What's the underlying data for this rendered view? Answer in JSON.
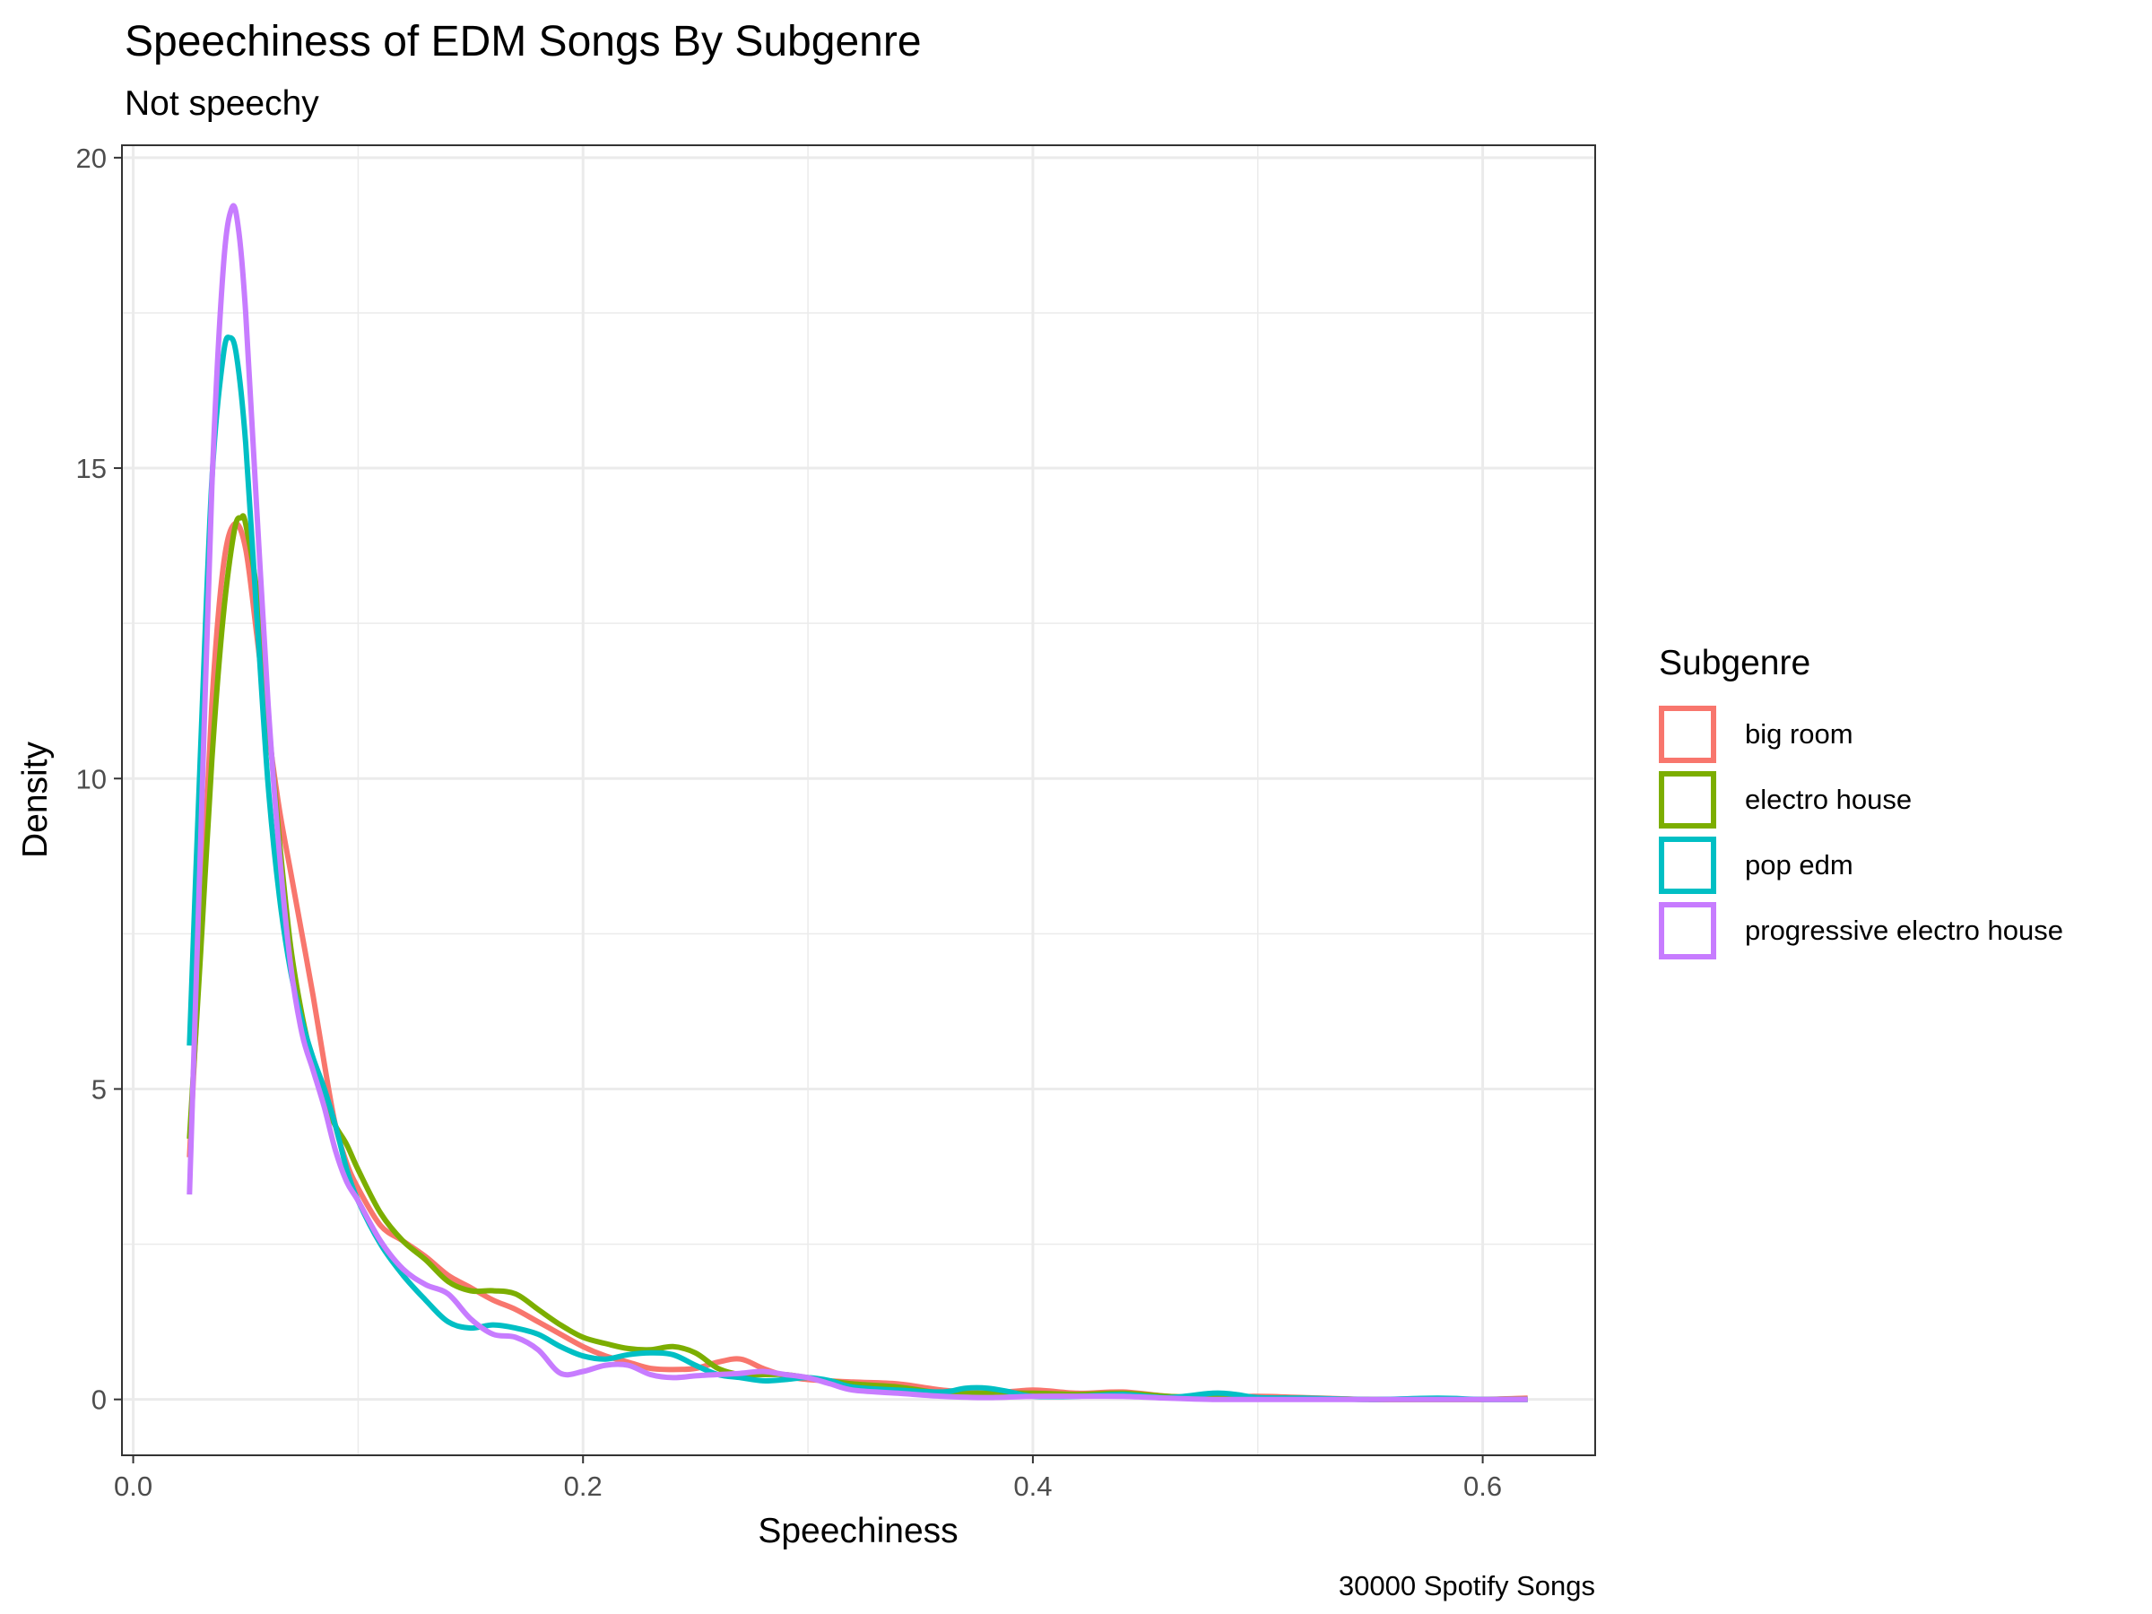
{
  "chart_data": {
    "type": "line",
    "title": "Speechiness of EDM Songs By Subgenre",
    "subtitle": "Not speechy",
    "xlabel": "Speechiness",
    "ylabel": "Density",
    "caption": "30000 Spotify Songs",
    "xlim": [
      -0.005,
      0.65
    ],
    "ylim": [
      -0.9,
      20.2
    ],
    "x_ticks": [
      0.0,
      0.2,
      0.4,
      0.6
    ],
    "x_tick_labels": [
      "0.0",
      "0.2",
      "0.4",
      "0.6"
    ],
    "x_minor_ticks": [
      0.1,
      0.3,
      0.5
    ],
    "y_ticks": [
      0,
      5,
      10,
      15,
      20
    ],
    "y_tick_labels": [
      "0",
      "5",
      "10",
      "15",
      "20"
    ],
    "y_minor_ticks": [
      2.5,
      7.5,
      12.5,
      17.5
    ],
    "grid": true,
    "legend": {
      "title": "Subgenre",
      "position": "right"
    },
    "series": [
      {
        "name": "big room",
        "color": "#F8766D",
        "points": [
          [
            0.025,
            3.9
          ],
          [
            0.03,
            7.5
          ],
          [
            0.035,
            11.2
          ],
          [
            0.04,
            13.4
          ],
          [
            0.045,
            14.1
          ],
          [
            0.05,
            13.7
          ],
          [
            0.055,
            12.3
          ],
          [
            0.06,
            10.8
          ],
          [
            0.065,
            9.5
          ],
          [
            0.07,
            8.5
          ],
          [
            0.075,
            7.5
          ],
          [
            0.08,
            6.5
          ],
          [
            0.085,
            5.4
          ],
          [
            0.09,
            4.4
          ],
          [
            0.095,
            3.8
          ],
          [
            0.1,
            3.4
          ],
          [
            0.11,
            2.8
          ],
          [
            0.12,
            2.55
          ],
          [
            0.13,
            2.3
          ],
          [
            0.14,
            2.0
          ],
          [
            0.15,
            1.8
          ],
          [
            0.16,
            1.6
          ],
          [
            0.17,
            1.45
          ],
          [
            0.18,
            1.25
          ],
          [
            0.19,
            1.05
          ],
          [
            0.2,
            0.85
          ],
          [
            0.21,
            0.7
          ],
          [
            0.22,
            0.6
          ],
          [
            0.23,
            0.5
          ],
          [
            0.24,
            0.48
          ],
          [
            0.25,
            0.5
          ],
          [
            0.26,
            0.6
          ],
          [
            0.27,
            0.65
          ],
          [
            0.28,
            0.5
          ],
          [
            0.29,
            0.38
          ],
          [
            0.3,
            0.32
          ],
          [
            0.32,
            0.28
          ],
          [
            0.34,
            0.25
          ],
          [
            0.36,
            0.15
          ],
          [
            0.38,
            0.1
          ],
          [
            0.4,
            0.15
          ],
          [
            0.42,
            0.1
          ],
          [
            0.44,
            0.12
          ],
          [
            0.46,
            0.05
          ],
          [
            0.48,
            0.03
          ],
          [
            0.5,
            0.05
          ],
          [
            0.52,
            0.03
          ],
          [
            0.55,
            0.0
          ],
          [
            0.58,
            0.0
          ],
          [
            0.6,
            0.0
          ],
          [
            0.62,
            0.02
          ]
        ]
      },
      {
        "name": "electro house",
        "color": "#7CAE00",
        "points": [
          [
            0.025,
            4.2
          ],
          [
            0.03,
            7.2
          ],
          [
            0.035,
            10.3
          ],
          [
            0.04,
            12.6
          ],
          [
            0.045,
            14.0
          ],
          [
            0.048,
            14.2
          ],
          [
            0.05,
            14.1
          ],
          [
            0.055,
            13.0
          ],
          [
            0.06,
            11.0
          ],
          [
            0.065,
            9.0
          ],
          [
            0.07,
            7.3
          ],
          [
            0.075,
            6.2
          ],
          [
            0.08,
            5.4
          ],
          [
            0.085,
            4.8
          ],
          [
            0.09,
            4.4
          ],
          [
            0.095,
            4.1
          ],
          [
            0.1,
            3.7
          ],
          [
            0.11,
            3.0
          ],
          [
            0.12,
            2.55
          ],
          [
            0.13,
            2.25
          ],
          [
            0.14,
            1.9
          ],
          [
            0.15,
            1.75
          ],
          [
            0.16,
            1.75
          ],
          [
            0.17,
            1.7
          ],
          [
            0.18,
            1.45
          ],
          [
            0.19,
            1.2
          ],
          [
            0.2,
            1.0
          ],
          [
            0.21,
            0.9
          ],
          [
            0.22,
            0.82
          ],
          [
            0.23,
            0.8
          ],
          [
            0.24,
            0.85
          ],
          [
            0.25,
            0.75
          ],
          [
            0.26,
            0.5
          ],
          [
            0.27,
            0.4
          ],
          [
            0.28,
            0.4
          ],
          [
            0.29,
            0.4
          ],
          [
            0.3,
            0.35
          ],
          [
            0.32,
            0.25
          ],
          [
            0.34,
            0.2
          ],
          [
            0.36,
            0.1
          ],
          [
            0.38,
            0.1
          ],
          [
            0.4,
            0.1
          ],
          [
            0.42,
            0.08
          ],
          [
            0.44,
            0.1
          ],
          [
            0.46,
            0.05
          ],
          [
            0.48,
            0.03
          ],
          [
            0.5,
            0.02
          ],
          [
            0.52,
            0.02
          ],
          [
            0.55,
            0.0
          ],
          [
            0.6,
            0.0
          ],
          [
            0.62,
            0.0
          ]
        ]
      },
      {
        "name": "pop edm",
        "color": "#00BFC4",
        "points": [
          [
            0.025,
            5.7
          ],
          [
            0.03,
            10.5
          ],
          [
            0.035,
            14.8
          ],
          [
            0.04,
            16.8
          ],
          [
            0.043,
            17.1
          ],
          [
            0.046,
            16.8
          ],
          [
            0.05,
            15.4
          ],
          [
            0.055,
            12.6
          ],
          [
            0.06,
            9.9
          ],
          [
            0.065,
            8.1
          ],
          [
            0.07,
            6.9
          ],
          [
            0.075,
            6.1
          ],
          [
            0.08,
            5.5
          ],
          [
            0.085,
            5.0
          ],
          [
            0.09,
            4.4
          ],
          [
            0.095,
            3.7
          ],
          [
            0.1,
            3.2
          ],
          [
            0.11,
            2.5
          ],
          [
            0.12,
            2.0
          ],
          [
            0.13,
            1.6
          ],
          [
            0.14,
            1.25
          ],
          [
            0.15,
            1.15
          ],
          [
            0.16,
            1.2
          ],
          [
            0.17,
            1.15
          ],
          [
            0.18,
            1.05
          ],
          [
            0.19,
            0.85
          ],
          [
            0.2,
            0.7
          ],
          [
            0.21,
            0.65
          ],
          [
            0.22,
            0.72
          ],
          [
            0.23,
            0.75
          ],
          [
            0.24,
            0.72
          ],
          [
            0.25,
            0.55
          ],
          [
            0.26,
            0.4
          ],
          [
            0.27,
            0.35
          ],
          [
            0.28,
            0.3
          ],
          [
            0.29,
            0.32
          ],
          [
            0.3,
            0.35
          ],
          [
            0.31,
            0.3
          ],
          [
            0.32,
            0.2
          ],
          [
            0.34,
            0.15
          ],
          [
            0.36,
            0.12
          ],
          [
            0.37,
            0.18
          ],
          [
            0.38,
            0.18
          ],
          [
            0.39,
            0.12
          ],
          [
            0.4,
            0.05
          ],
          [
            0.42,
            0.05
          ],
          [
            0.44,
            0.08
          ],
          [
            0.46,
            0.03
          ],
          [
            0.48,
            0.1
          ],
          [
            0.49,
            0.08
          ],
          [
            0.5,
            0.03
          ],
          [
            0.52,
            0.02
          ],
          [
            0.55,
            0.0
          ],
          [
            0.58,
            0.02
          ],
          [
            0.6,
            0.0
          ],
          [
            0.62,
            0.0
          ]
        ]
      },
      {
        "name": "progressive electro house",
        "color": "#C77CFF",
        "points": [
          [
            0.025,
            3.3
          ],
          [
            0.03,
            9.0
          ],
          [
            0.035,
            14.7
          ],
          [
            0.04,
            18.2
          ],
          [
            0.044,
            19.2
          ],
          [
            0.047,
            18.8
          ],
          [
            0.05,
            17.5
          ],
          [
            0.055,
            14.3
          ],
          [
            0.06,
            11.2
          ],
          [
            0.065,
            8.8
          ],
          [
            0.07,
            7.0
          ],
          [
            0.075,
            5.9
          ],
          [
            0.08,
            5.3
          ],
          [
            0.085,
            4.7
          ],
          [
            0.09,
            4.0
          ],
          [
            0.095,
            3.5
          ],
          [
            0.1,
            3.2
          ],
          [
            0.11,
            2.55
          ],
          [
            0.12,
            2.1
          ],
          [
            0.13,
            1.85
          ],
          [
            0.14,
            1.7
          ],
          [
            0.15,
            1.3
          ],
          [
            0.16,
            1.05
          ],
          [
            0.17,
            1.0
          ],
          [
            0.18,
            0.8
          ],
          [
            0.19,
            0.42
          ],
          [
            0.2,
            0.45
          ],
          [
            0.21,
            0.55
          ],
          [
            0.22,
            0.55
          ],
          [
            0.23,
            0.4
          ],
          [
            0.24,
            0.35
          ],
          [
            0.25,
            0.38
          ],
          [
            0.26,
            0.4
          ],
          [
            0.27,
            0.42
          ],
          [
            0.28,
            0.45
          ],
          [
            0.29,
            0.4
          ],
          [
            0.3,
            0.35
          ],
          [
            0.31,
            0.25
          ],
          [
            0.32,
            0.15
          ],
          [
            0.34,
            0.1
          ],
          [
            0.36,
            0.05
          ],
          [
            0.38,
            0.03
          ],
          [
            0.4,
            0.05
          ],
          [
            0.42,
            0.05
          ],
          [
            0.44,
            0.05
          ],
          [
            0.46,
            0.02
          ],
          [
            0.48,
            0.0
          ],
          [
            0.5,
            0.0
          ],
          [
            0.55,
            0.0
          ],
          [
            0.6,
            0.0
          ],
          [
            0.62,
            0.0
          ]
        ]
      }
    ]
  }
}
